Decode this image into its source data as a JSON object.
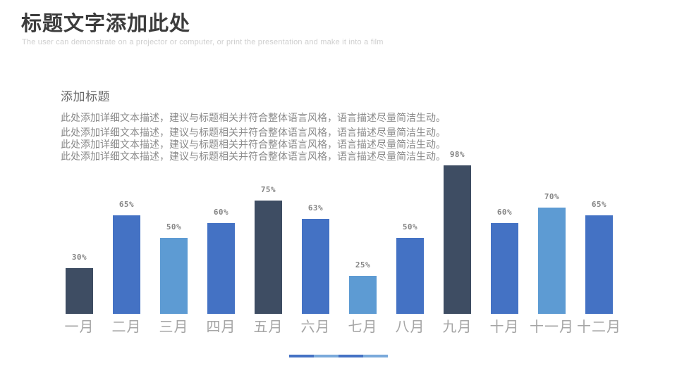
{
  "header": {
    "title": "标题文字添加此处",
    "subtitle": "The user can demonstrate on a projector or computer, or print the presentation and make it into a film"
  },
  "content": {
    "heading": "添加标题",
    "body_lines": [
      "此处添加详细文本描述，建议与标题相关并符合整体语言风格，语言描述尽量简洁生动。",
      "此处添加详细文本描述，建议与标题相关并符合整体语言风格，语言描述尽量简洁生动。",
      "此处添加详细文本描述，建议与标题相关并符合整体语言风格，语言描述尽量简洁生动。",
      "此处添加详细文本描述，建议与标题相关并符合整体语言风格，语言描述尽量简洁生动。"
    ]
  },
  "chart_data": {
    "type": "bar",
    "title": "",
    "xlabel": "",
    "ylabel": "",
    "ylim": [
      0,
      100
    ],
    "grid": false,
    "legend": "none",
    "categories": [
      "一月",
      "二月",
      "三月",
      "四月",
      "五月",
      "六月",
      "七月",
      "八月",
      "九月",
      "十月",
      "十一月",
      "十二月"
    ],
    "values": [
      30,
      65,
      50,
      60,
      75,
      63,
      25,
      50,
      98,
      60,
      70,
      65
    ],
    "value_labels": [
      "30%",
      "65%",
      "50%",
      "60%",
      "75%",
      "63%",
      "25%",
      "50%",
      "98%",
      "60%",
      "70%",
      "65%"
    ],
    "bar_color_roles": [
      "dark",
      "blue",
      "light",
      "blue",
      "dark",
      "blue",
      "light",
      "blue",
      "dark",
      "blue",
      "light",
      "blue"
    ],
    "palette": {
      "dark": "#3e4d63",
      "blue": "#4472c4",
      "light": "#5d9bd3"
    },
    "value_label_color": "#858585",
    "category_label_color": "#a5a5a5"
  },
  "footer": {
    "segment_colors": [
      "#4472c4",
      "#7aa9da",
      "#4472c4",
      "#7aa9da"
    ]
  },
  "theme": {
    "background": "#ffffff",
    "title_color": "#3c3c3c",
    "subtitle_color": "#cfcfcf",
    "heading_color": "#696969",
    "body_color": "#8a8a8a"
  }
}
